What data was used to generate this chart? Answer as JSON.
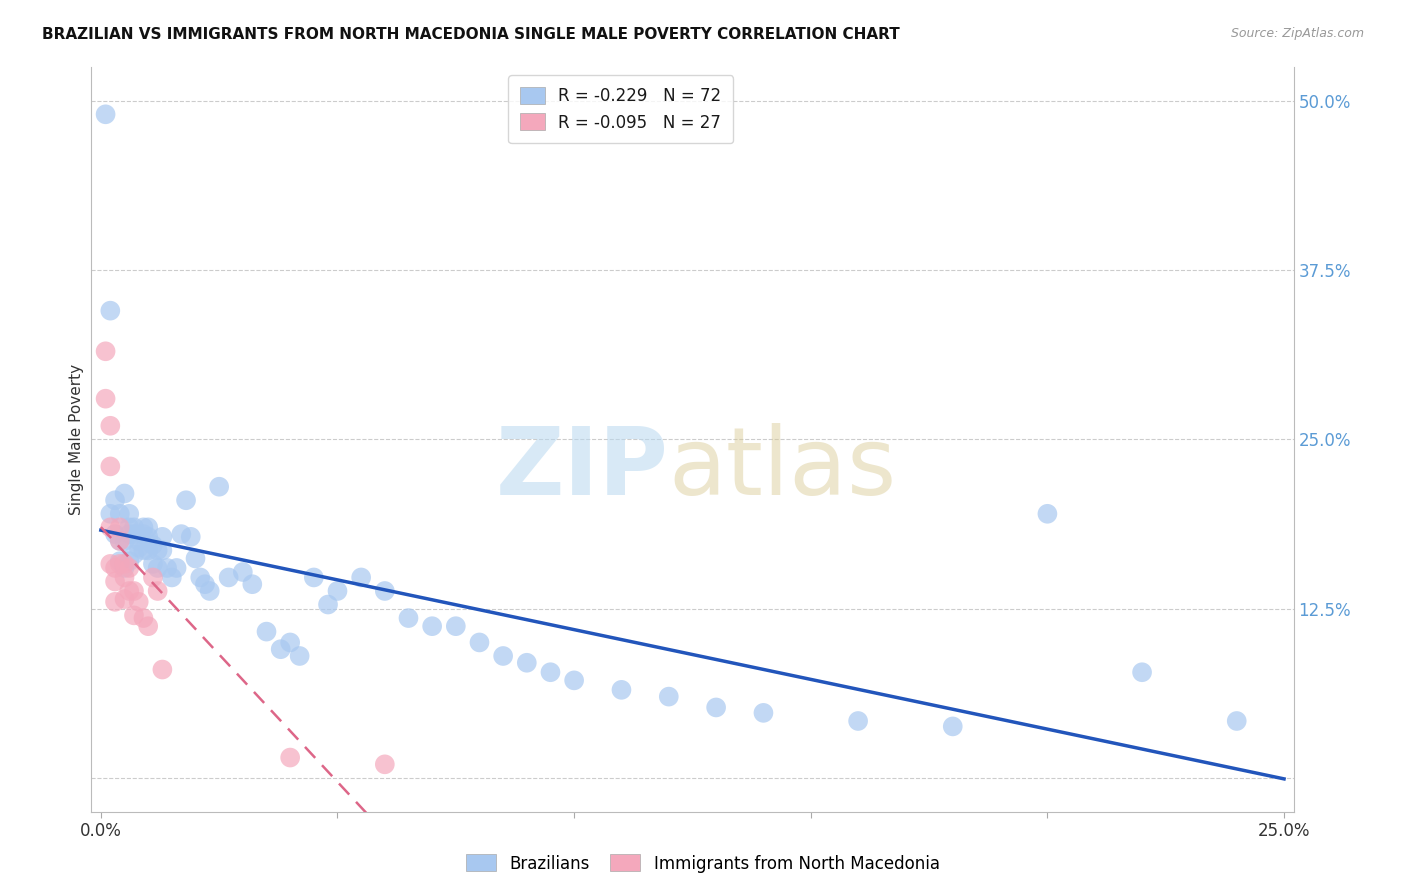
{
  "title": "BRAZILIAN VS IMMIGRANTS FROM NORTH MACEDONIA SINGLE MALE POVERTY CORRELATION CHART",
  "source": "Source: ZipAtlas.com",
  "ylabel": "Single Male Poverty",
  "right_yticks": [
    0.0,
    0.125,
    0.25,
    0.375,
    0.5
  ],
  "right_yticklabels": [
    "",
    "12.5%",
    "25.0%",
    "37.5%",
    "50.0%"
  ],
  "xlim": [
    -0.002,
    0.252
  ],
  "ylim": [
    -0.025,
    0.525
  ],
  "legend_r1": "R = -0.229   N = 72",
  "legend_r2": "R = -0.095   N = 27",
  "legend_label1": "Brazilians",
  "legend_label2": "Immigrants from North Macedonia",
  "blue_color": "#a8c8f0",
  "pink_color": "#f4a8bc",
  "line_blue": "#2255bb",
  "line_pink": "#dd6688",
  "brazil_x": [
    0.001,
    0.002,
    0.002,
    0.003,
    0.003,
    0.004,
    0.004,
    0.004,
    0.005,
    0.005,
    0.005,
    0.006,
    0.006,
    0.006,
    0.006,
    0.007,
    0.007,
    0.007,
    0.008,
    0.008,
    0.009,
    0.009,
    0.009,
    0.01,
    0.01,
    0.01,
    0.011,
    0.011,
    0.012,
    0.012,
    0.013,
    0.013,
    0.014,
    0.015,
    0.016,
    0.017,
    0.018,
    0.019,
    0.02,
    0.021,
    0.022,
    0.023,
    0.025,
    0.027,
    0.03,
    0.032,
    0.035,
    0.038,
    0.04,
    0.042,
    0.045,
    0.048,
    0.05,
    0.055,
    0.06,
    0.065,
    0.07,
    0.075,
    0.08,
    0.085,
    0.09,
    0.095,
    0.1,
    0.11,
    0.12,
    0.13,
    0.14,
    0.16,
    0.18,
    0.2,
    0.22,
    0.24
  ],
  "brazil_y": [
    0.49,
    0.345,
    0.195,
    0.205,
    0.18,
    0.195,
    0.175,
    0.16,
    0.21,
    0.175,
    0.155,
    0.195,
    0.185,
    0.18,
    0.16,
    0.185,
    0.18,
    0.165,
    0.175,
    0.17,
    0.185,
    0.18,
    0.168,
    0.185,
    0.178,
    0.168,
    0.172,
    0.158,
    0.168,
    0.155,
    0.178,
    0.168,
    0.155,
    0.148,
    0.155,
    0.18,
    0.205,
    0.178,
    0.162,
    0.148,
    0.143,
    0.138,
    0.215,
    0.148,
    0.152,
    0.143,
    0.108,
    0.095,
    0.1,
    0.09,
    0.148,
    0.128,
    0.138,
    0.148,
    0.138,
    0.118,
    0.112,
    0.112,
    0.1,
    0.09,
    0.085,
    0.078,
    0.072,
    0.065,
    0.06,
    0.052,
    0.048,
    0.042,
    0.038,
    0.195,
    0.078,
    0.042
  ],
  "macedonia_x": [
    0.001,
    0.001,
    0.002,
    0.002,
    0.002,
    0.002,
    0.003,
    0.003,
    0.003,
    0.004,
    0.004,
    0.004,
    0.005,
    0.005,
    0.005,
    0.006,
    0.006,
    0.007,
    0.007,
    0.008,
    0.009,
    0.01,
    0.011,
    0.012,
    0.013,
    0.04,
    0.06
  ],
  "macedonia_y": [
    0.315,
    0.28,
    0.26,
    0.23,
    0.185,
    0.158,
    0.155,
    0.145,
    0.13,
    0.185,
    0.175,
    0.158,
    0.158,
    0.148,
    0.132,
    0.155,
    0.138,
    0.138,
    0.12,
    0.13,
    0.118,
    0.112,
    0.148,
    0.138,
    0.08,
    0.015,
    0.01
  ]
}
